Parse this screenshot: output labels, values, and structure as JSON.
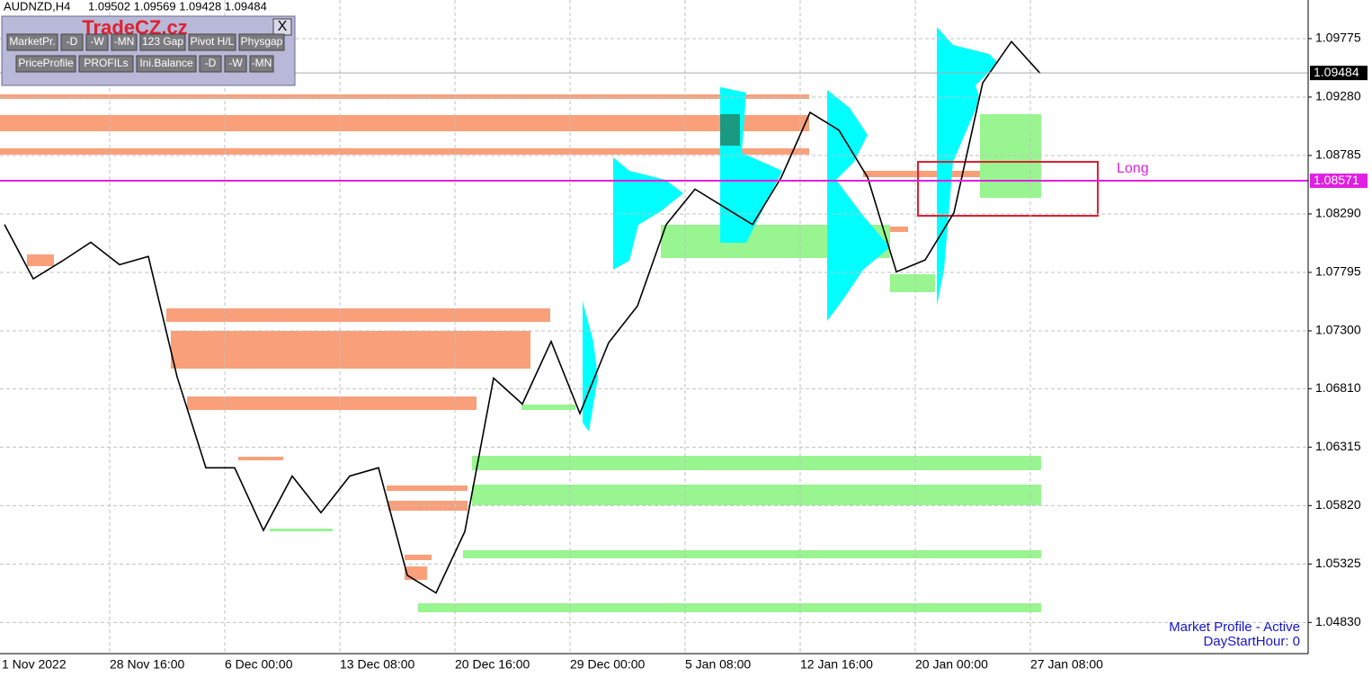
{
  "header": {
    "symbol": "AUDNZD,H4",
    "ohlc": "1.09502 1.09569 1.09428 1.09484"
  },
  "panel": {
    "brand": "TradeCZ.cz",
    "close": "X",
    "row1": [
      "MarketPr.",
      "-D",
      "-W",
      "-MN",
      "123 Gap",
      "Pivot H/L",
      "Physgap"
    ],
    "row2": [
      "PriceProfile",
      "PROFILs",
      "Ini.Balance",
      "-D",
      "-W",
      "-MN"
    ]
  },
  "chart": {
    "ylim": [
      1.04566,
      1.10102
    ],
    "yticks": [
      1.09775,
      {
        "value": 1.0928,
        "label": "1.09280"
      },
      1.08785,
      {
        "value": 1.0829,
        "label": "1.08290"
      },
      1.07795,
      {
        "value": 1.073,
        "label": "1.07300"
      },
      {
        "value": 1.0681,
        "label": "1.06810"
      },
      1.06315,
      {
        "value": 1.0582,
        "label": "1.05820"
      },
      1.05325,
      {
        "value": 1.0483,
        "label": "1.04830"
      }
    ],
    "xlabels": [
      "1 Nov 2022",
      "28 Nov 16:00",
      "6 Dec 00:00",
      "13 Dec 08:00",
      "20 Dec 16:00",
      "29 Dec 00:00",
      "5 Jan 08:00",
      "12 Jan 16:00",
      "20 Jan 00:00",
      "27 Jan 08:00"
    ],
    "closes": [
      1.082,
      1.0774,
      1.0789,
      1.0805,
      1.0786,
      1.0793,
      1.0691,
      1.0614,
      1.0614,
      1.0561,
      1.0607,
      1.0576,
      1.0607,
      1.0614,
      1.0523,
      1.0508,
      1.056,
      1.069,
      1.0668,
      1.0721,
      1.066,
      1.072,
      1.0751,
      1.082,
      1.085,
      1.0835,
      1.082,
      1.086,
      1.0915,
      1.09,
      1.086,
      1.078,
      1.079,
      1.083,
      1.094,
      1.0975,
      1.0948
    ],
    "current_price": {
      "value": 1.09484,
      "label": "1.09484"
    },
    "level": {
      "value": 1.08571,
      "label": "1.08571"
    },
    "annotation": "Long"
  },
  "status": [
    "Market Profile - Active",
    "DayStartHour: 0"
  ]
}
